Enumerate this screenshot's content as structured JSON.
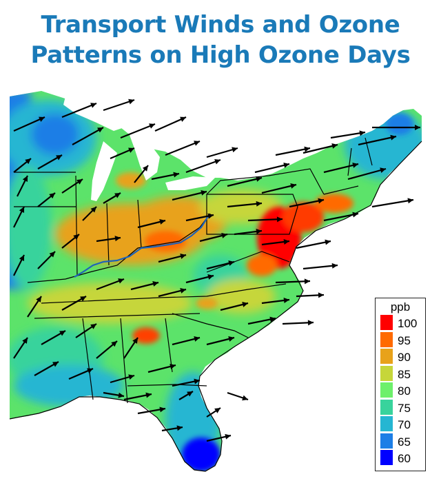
{
  "title": {
    "line1": "Transport Winds and Ozone",
    "line2": "Patterns on High Ozone Days"
  },
  "legend": {
    "unit": "ppb",
    "levels": [
      {
        "label": "100",
        "color": "#ff0000"
      },
      {
        "label": "95",
        "color": "#ff6a00"
      },
      {
        "label": "90",
        "color": "#e8a21a"
      },
      {
        "label": "85",
        "color": "#c6d63a"
      },
      {
        "label": "80",
        "color": "#6df06b"
      },
      {
        "label": "75",
        "color": "#38d39c"
      },
      {
        "label": "70",
        "color": "#25b6d2"
      },
      {
        "label": "65",
        "color": "#1c7ee6"
      },
      {
        "label": "60",
        "color": "#0000ff"
      }
    ]
  },
  "colors": {
    "title": "#1a7ab8",
    "land_base": "#5ce36a",
    "arrow": "#000000",
    "river": "#1f63b8",
    "state_border": "#000000"
  }
}
